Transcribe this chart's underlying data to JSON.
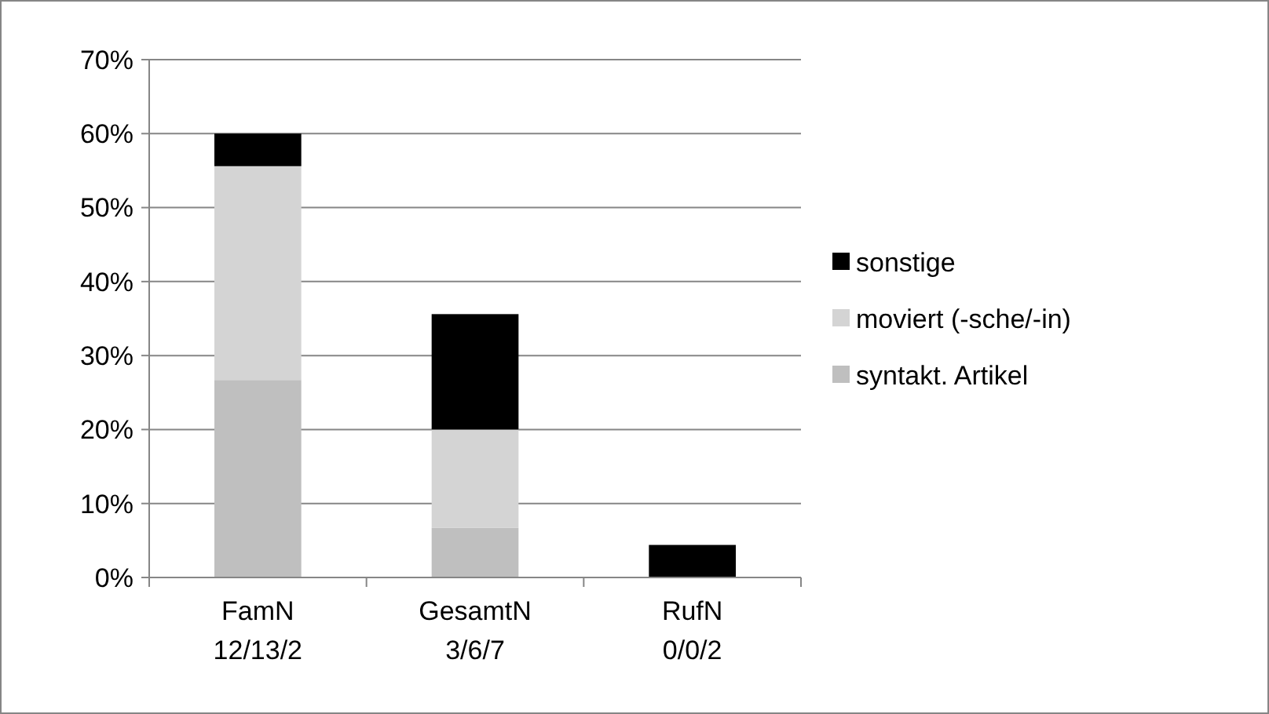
{
  "chart_data": {
    "type": "bar",
    "stacked": true,
    "categories": [
      "FamN\n12/13/2",
      "GesamtN\n3/6/7",
      "RufN\n0/0/2"
    ],
    "series": [
      {
        "name": "syntakt. Artikel",
        "color": "#bfbfbf",
        "values": [
          26.7,
          6.7,
          0
        ]
      },
      {
        "name": "moviert (-sche/-in)",
        "color": "#d4d4d4",
        "values": [
          28.9,
          13.3,
          0
        ]
      },
      {
        "name": "sonstige",
        "color": "#000000",
        "values": [
          4.4,
          15.6,
          4.4
        ]
      }
    ],
    "ylim": [
      0,
      70
    ],
    "yticks": [
      {
        "value": 0,
        "label": "0%"
      },
      {
        "value": 10,
        "label": "10%"
      },
      {
        "value": 20,
        "label": "20%"
      },
      {
        "value": 30,
        "label": "30%"
      },
      {
        "value": 40,
        "label": "40%"
      },
      {
        "value": 50,
        "label": "50%"
      },
      {
        "value": 60,
        "label": "60%"
      },
      {
        "value": 70,
        "label": "70%"
      }
    ],
    "grid": "y",
    "legend": "right"
  }
}
